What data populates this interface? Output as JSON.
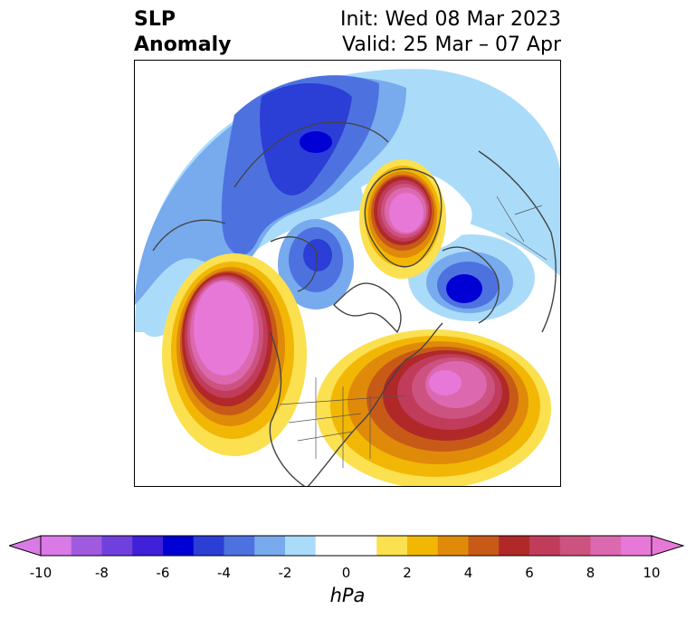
{
  "title": {
    "left_line1": "SLP",
    "left_line2": "Anomaly",
    "right_line1": "Init: Wed 08 Mar 2023",
    "right_line2": "Valid: 25 Mar – 07 Apr"
  },
  "colorbar": {
    "unit": "hPa",
    "ticks": [
      "-10",
      "-8",
      "-6",
      "-4",
      "-2",
      "0",
      "2",
      "4",
      "6",
      "8",
      "10"
    ],
    "colors": [
      "#d97ae6",
      "#a05ae0",
      "#7040dc",
      "#4020d8",
      "#0000d4",
      "#2b3ed6",
      "#4d72e0",
      "#78aaee",
      "#aadcfa",
      "#ffffff",
      "#ffffff",
      "#fbe050",
      "#f2b705",
      "#e08a0a",
      "#c85a18",
      "#b02828",
      "#c03c5a",
      "#cc5280",
      "#dc68b0",
      "#e878d8"
    ]
  },
  "anomalies": [
    {
      "label": "positive-north-pacific",
      "sign": "+"
    },
    {
      "label": "positive-arctic-greenland",
      "sign": "+"
    },
    {
      "label": "positive-western-atlantic",
      "sign": "+"
    },
    {
      "label": "negative-siberia-asia",
      "sign": "-"
    },
    {
      "label": "negative-hudson-bay",
      "sign": "-"
    },
    {
      "label": "negative-scandinavia",
      "sign": "-"
    }
  ]
}
